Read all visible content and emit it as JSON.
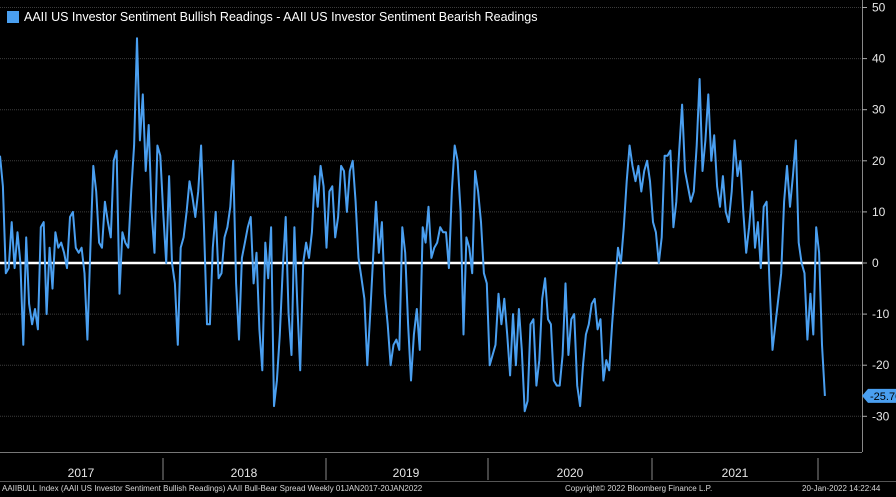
{
  "legend": {
    "color": "#4a9ff0",
    "label": "AAII US Investor Sentiment Bullish Readings - AAII US Investor Sentiment Bearish Readings"
  },
  "footer": {
    "left": "AAIIBULL Index (AAII US Investor Sentiment Bullish Readings) AAII Bull-Bear Spread  Weekly 01JAN2017-20JAN2022",
    "middle": "Copyright© 2022 Bloomberg Finance L.P.",
    "right": "20-Jan-2022 14:22:44"
  },
  "chart_data": {
    "type": "line",
    "title": "",
    "xlabel": "",
    "ylabel": "",
    "ylim": [
      -35,
      50
    ],
    "y_ticks": [
      50,
      40,
      30,
      20,
      10,
      0,
      -10,
      -20,
      -30
    ],
    "x_labels": [
      "2017",
      "2018",
      "2019",
      "2020",
      "2021"
    ],
    "x_range": [
      "2017-01",
      "2022-01"
    ],
    "grid": true,
    "zero_line": true,
    "last_value_label": "-25.70",
    "series": [
      {
        "color": "#4a9ff0",
        "values": [
          21,
          15,
          -2,
          -1,
          8,
          -1,
          6,
          0,
          -16,
          5,
          -8,
          -12,
          -9,
          -13,
          7,
          8,
          -10,
          3,
          -5,
          6,
          3,
          4,
          2,
          -1,
          9,
          10,
          3,
          2,
          3,
          -2,
          -15,
          3,
          19,
          14,
          4,
          3,
          12,
          8,
          5,
          20,
          22,
          -6,
          6,
          4,
          3,
          14,
          23,
          44,
          24,
          33,
          18,
          27,
          10,
          2,
          23,
          21,
          10,
          0,
          17,
          0,
          -4,
          -16,
          3,
          5,
          10,
          16,
          13,
          9,
          14,
          23,
          7,
          -12,
          -12,
          3,
          10,
          -3,
          -2,
          5,
          7,
          11,
          20,
          -4,
          -15,
          1,
          4,
          7,
          9,
          -4,
          2,
          -13,
          -21,
          4,
          -3,
          7,
          -28,
          -23,
          -14,
          -1,
          9,
          -10,
          -18,
          7,
          -8,
          -21,
          0,
          4,
          1,
          6,
          17,
          11,
          19,
          15,
          3,
          14,
          15,
          5,
          9,
          19,
          18,
          10,
          18,
          20,
          12,
          1,
          -3,
          -7,
          -20,
          -10,
          1,
          12,
          2,
          8,
          -6,
          -12,
          -20,
          -16,
          -15,
          -17,
          7,
          2,
          -12,
          -23,
          -14,
          -9,
          -17,
          7,
          4,
          11,
          1,
          3,
          4,
          7,
          6,
          6,
          -1,
          14,
          23,
          20,
          10,
          -14,
          5,
          3,
          -2,
          18,
          14,
          8,
          -2,
          -4,
          -20,
          -18,
          -16,
          -6,
          -12,
          -7,
          -14,
          -22,
          -10,
          -20,
          -9,
          -17,
          -29,
          -27,
          -12,
          -11,
          -24,
          -19,
          -7,
          -3,
          -11,
          -12,
          -23,
          -24,
          -24,
          -18,
          -4,
          -18,
          -11,
          -10,
          -24,
          -28,
          -20,
          -14,
          -12,
          -8,
          -7,
          -13,
          -11,
          -23,
          -19,
          -21,
          -12,
          -4,
          3,
          0,
          7,
          16,
          23,
          19,
          16,
          19,
          14,
          18,
          20,
          16,
          8,
          6,
          0,
          5,
          21,
          21,
          22,
          7,
          12,
          22,
          31,
          18,
          15,
          12,
          14,
          23,
          36,
          18,
          24,
          33,
          20,
          25,
          15,
          11,
          17,
          10,
          8,
          14,
          24,
          17,
          20,
          10,
          2,
          7,
          14,
          3,
          8,
          -1,
          11,
          12,
          -4,
          -17,
          -12,
          -7,
          -2,
          12,
          19,
          11,
          17,
          24,
          4,
          0,
          -2,
          -15,
          -6,
          -14,
          7,
          2,
          -16,
          -26
        ]
      }
    ]
  }
}
